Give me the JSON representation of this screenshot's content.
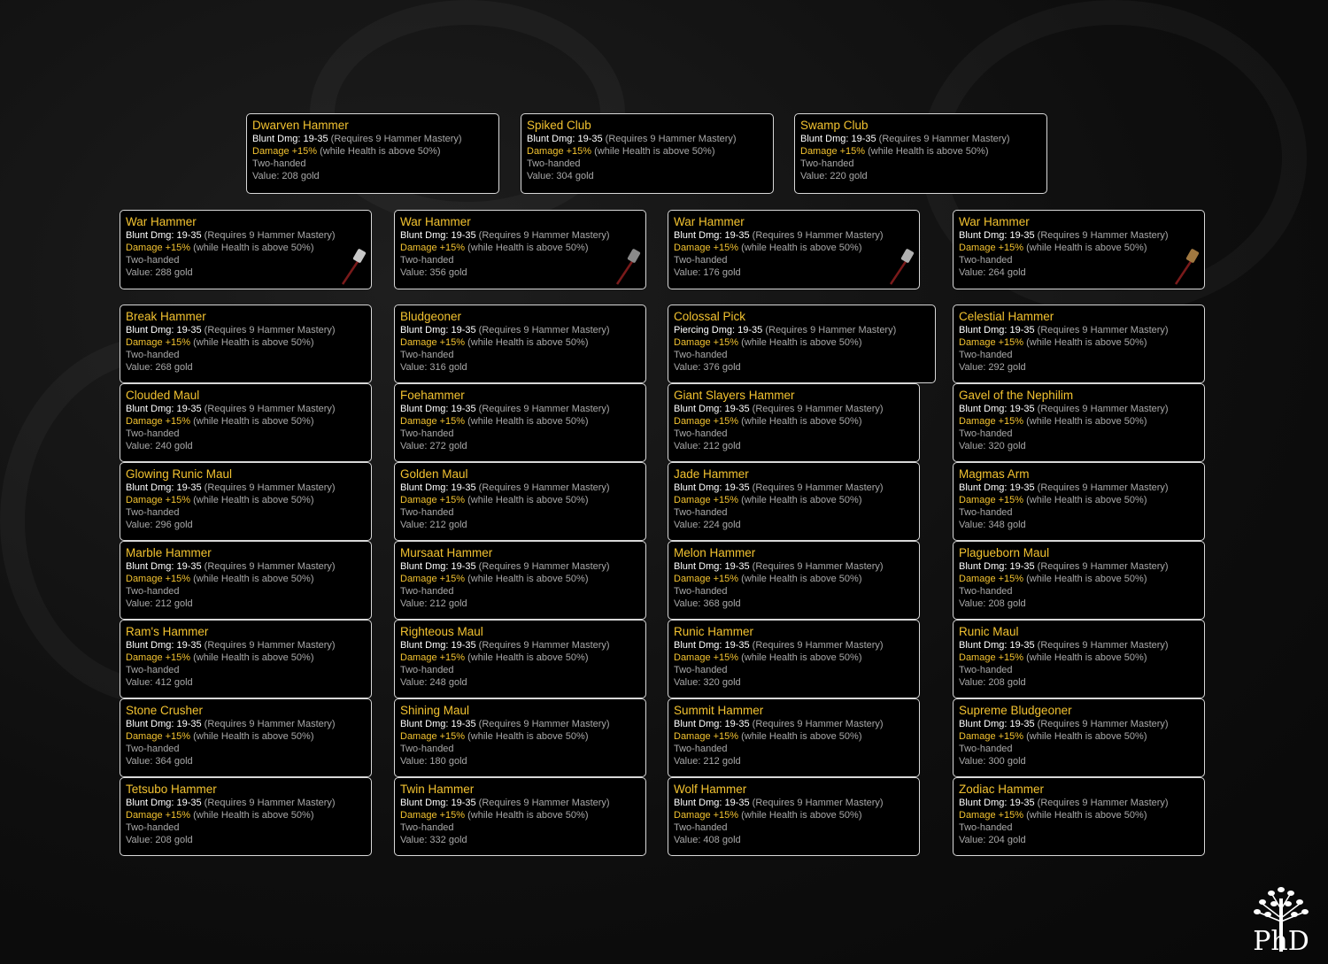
{
  "common": {
    "req": " (Requires 9 Hammer Mastery)",
    "dmg_label": "Damage +15%",
    "dmg_cond": " (while Health is above 50%)",
    "handed": "Two-handed"
  },
  "top_row": [
    {
      "name": "Dwarven Hammer",
      "type": "Blunt Dmg: 19-35",
      "value": "Value: 208 gold"
    },
    {
      "name": "Spiked Club",
      "type": "Blunt Dmg: 19-35",
      "value": "Value: 304 gold"
    },
    {
      "name": "Swamp Club",
      "type": "Blunt Dmg: 19-35",
      "value": "Value: 220 gold"
    }
  ],
  "war_row": [
    {
      "name": "War Hammer",
      "type": "Blunt Dmg: 19-35",
      "value": "Value: 288 gold",
      "icon": "hammer-icon",
      "color": "#c8c8c8"
    },
    {
      "name": "War Hammer",
      "type": "Blunt Dmg: 19-35",
      "value": "Value: 356 gold",
      "icon": "mace-icon",
      "color": "#8a8a8a"
    },
    {
      "name": "War Hammer",
      "type": "Blunt Dmg: 19-35",
      "value": "Value: 176 gold",
      "icon": "hammer-icon",
      "color": "#b0b0b0"
    },
    {
      "name": "War Hammer",
      "type": "Blunt Dmg: 19-35",
      "value": "Value: 264 gold",
      "icon": "hammer-icon",
      "color": "#a07840"
    }
  ],
  "grid": [
    [
      {
        "name": "Break Hammer",
        "type": "Blunt Dmg: 19-35",
        "value": "Value: 268 gold"
      },
      {
        "name": "Bludgeoner",
        "type": "Blunt Dmg: 19-35",
        "value": "Value: 316 gold"
      },
      {
        "name": "Colossal Pick",
        "type": "Piercing Dmg: 19-35",
        "value": "Value: 376 gold"
      },
      {
        "name": "Celestial Hammer",
        "type": "Blunt Dmg: 19-35",
        "value": "Value: 292 gold"
      }
    ],
    [
      {
        "name": "Clouded Maul",
        "type": "Blunt Dmg: 19-35",
        "value": "Value: 240 gold"
      },
      {
        "name": "Foehammer",
        "type": "Blunt Dmg: 19-35",
        "value": "Value: 272 gold"
      },
      {
        "name": "Giant Slayers Hammer",
        "type": "Blunt Dmg: 19-35",
        "value": "Value: 212 gold"
      },
      {
        "name": "Gavel of the Nephilim",
        "type": "Blunt Dmg: 19-35",
        "value": "Value: 320 gold"
      }
    ],
    [
      {
        "name": "Glowing Runic Maul",
        "type": "Blunt Dmg: 19-35",
        "value": "Value: 296 gold"
      },
      {
        "name": "Golden Maul",
        "type": "Blunt Dmg: 19-35",
        "value": "Value: 212 gold"
      },
      {
        "name": "Jade Hammer",
        "type": "Blunt Dmg: 19-35",
        "value": "Value: 224 gold"
      },
      {
        "name": "Magmas Arm",
        "type": "Blunt Dmg: 19-35",
        "value": "Value: 348 gold"
      }
    ],
    [
      {
        "name": "Marble Hammer",
        "type": "Blunt Dmg: 19-35",
        "value": "Value: 212 gold"
      },
      {
        "name": "Mursaat Hammer",
        "type": "Blunt Dmg: 19-35",
        "value": "Value: 212 gold"
      },
      {
        "name": "Melon Hammer",
        "type": "Blunt Dmg: 19-35",
        "value": "Value: 368 gold"
      },
      {
        "name": "Plagueborn Maul",
        "type": "Blunt Dmg: 19-35",
        "value": "Value: 208 gold"
      }
    ],
    [
      {
        "name": "Ram's Hammer",
        "type": "Blunt Dmg: 19-35",
        "value": "Value: 412 gold"
      },
      {
        "name": "Righteous Maul",
        "type": "Blunt Dmg: 19-35",
        "value": "Value: 248 gold"
      },
      {
        "name": "Runic Hammer",
        "type": "Blunt Dmg: 19-35",
        "value": "Value: 320 gold"
      },
      {
        "name": "Runic Maul",
        "type": "Blunt Dmg: 19-35",
        "value": "Value: 208 gold"
      }
    ],
    [
      {
        "name": "Stone Crusher",
        "type": "Blunt Dmg: 19-35",
        "value": "Value: 364 gold"
      },
      {
        "name": "Shining Maul",
        "type": "Blunt Dmg: 19-35",
        "value": "Value: 180 gold"
      },
      {
        "name": "Summit Hammer",
        "type": "Blunt Dmg: 19-35",
        "value": "Value: 212 gold"
      },
      {
        "name": "Supreme Bludgeoner",
        "type": "Blunt Dmg: 19-35",
        "value": "Value: 300 gold"
      }
    ],
    [
      {
        "name": "Tetsubo Hammer",
        "type": "Blunt Dmg: 19-35",
        "value": "Value: 208 gold"
      },
      {
        "name": "Twin Hammer",
        "type": "Blunt Dmg: 19-35",
        "value": "Value: 332 gold"
      },
      {
        "name": "Wolf Hammer",
        "type": "Blunt Dmg: 19-35",
        "value": "Value: 408 gold"
      },
      {
        "name": "Zodiac Hammer",
        "type": "Blunt Dmg: 19-35",
        "value": "Value: 204 gold"
      }
    ]
  ],
  "logo": {
    "text": "PhD"
  },
  "colors": {
    "title": "#f2c230",
    "stat": "#ffffff",
    "muted": "#a8a8a8",
    "border": "#d8d8d8"
  }
}
